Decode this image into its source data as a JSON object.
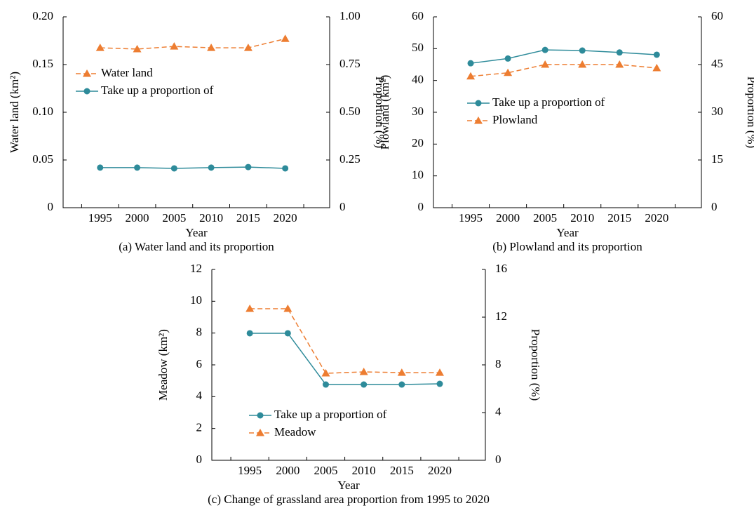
{
  "chart_data": [
    {
      "type": "line",
      "title": "(a) Water land and its proportion",
      "x_label": "Year",
      "y_label": "Water land (km²)",
      "y2_label": "Proportion (%)",
      "categories": [
        "1995",
        "2000",
        "2005",
        "2010",
        "2015",
        "2020"
      ],
      "series": [
        {
          "name": "Water land",
          "color": "#ed7d31",
          "marker": "triangle",
          "linestyle": "dashed",
          "axis": "y",
          "values": [
            0.1676,
            0.1662,
            0.169,
            0.1676,
            0.1676,
            0.177
          ]
        },
        {
          "name": "Take up a proportion of",
          "color": "#2e8b9a",
          "marker": "circle",
          "linestyle": "solid",
          "axis": "y2",
          "values": [
            0.21,
            0.21,
            0.206,
            0.21,
            0.213,
            0.206
          ]
        }
      ],
      "ylim": [
        0,
        0.2
      ],
      "yticks": [
        0,
        0.05,
        {
          "value": 0.1,
          "label": "0.10"
        },
        0.15,
        {
          "value": 0.2,
          "label": "0.20"
        }
      ],
      "y2lim": [
        0,
        1
      ],
      "y2ticks": [
        0,
        0.25,
        {
          "value": 0.5,
          "label": "0.50"
        },
        0.75,
        {
          "value": 1,
          "label": "1.00"
        }
      ],
      "legend": "upper left"
    },
    {
      "type": "line",
      "title": "(b) Plowland and its proportion",
      "x_label": "Year",
      "y_label": "Plowland (km²)",
      "y2_label": "Proportion (%)",
      "categories": [
        "1995",
        "2000",
        "2005",
        "2010",
        "2015",
        "2020"
      ],
      "series": [
        {
          "name": "Take up a proportion of",
          "color": "#2e8b9a",
          "marker": "circle",
          "linestyle": "solid",
          "axis": "y2",
          "values": [
            45.4,
            46.9,
            49.6,
            49.4,
            48.8,
            48.1
          ]
        },
        {
          "name": "Plowland",
          "color": "#ed7d31",
          "marker": "triangle",
          "linestyle": "dashed",
          "axis": "y",
          "values": [
            41.3,
            42.4,
            45.0,
            45.0,
            45.0,
            43.9
          ]
        }
      ],
      "ylim": [
        0,
        60
      ],
      "yticks": [
        0,
        10,
        20,
        30,
        40,
        50,
        60
      ],
      "y2lim": [
        0,
        60
      ],
      "y2ticks": [
        0,
        15,
        30,
        45,
        60
      ],
      "legend": "center"
    },
    {
      "type": "line",
      "title": "(c) Change of grassland area proportion from 1995 to 2020",
      "x_label": "Year",
      "y_label": "Meadow (km²)",
      "y2_label": "Proportion (%)",
      "categories": [
        "1995",
        "2000",
        "2005",
        "2010",
        "2015",
        "2020"
      ],
      "series": [
        {
          "name": "Take up a proportion of",
          "color": "#2e8b9a",
          "marker": "circle",
          "linestyle": "solid",
          "axis": "y2",
          "values": [
            10.65,
            10.65,
            6.35,
            6.35,
            6.35,
            6.41
          ]
        },
        {
          "name": "Meadow",
          "color": "#ed7d31",
          "marker": "triangle",
          "linestyle": "dashed",
          "axis": "y",
          "values": [
            9.53,
            9.53,
            5.47,
            5.56,
            5.51,
            5.51
          ]
        }
      ],
      "ylim": [
        0,
        12
      ],
      "yticks": [
        0,
        2,
        4,
        6,
        8,
        10,
        12
      ],
      "y2lim": [
        0,
        16
      ],
      "y2ticks": [
        0,
        4,
        8,
        12,
        16
      ],
      "legend": "lower center"
    }
  ]
}
